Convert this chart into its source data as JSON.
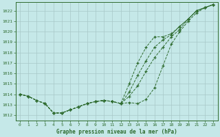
{
  "title": "Graphe pression niveau de la mer (hPa)",
  "xlabel_values": [
    0,
    1,
    2,
    3,
    4,
    5,
    6,
    7,
    8,
    9,
    10,
    11,
    12,
    13,
    14,
    15,
    16,
    17,
    18,
    19,
    20,
    21,
    22,
    23
  ],
  "ylim": [
    1011.5,
    1022.8
  ],
  "xlim": [
    -0.5,
    23.5
  ],
  "yticks": [
    1012,
    1013,
    1014,
    1015,
    1016,
    1017,
    1018,
    1019,
    1020,
    1021,
    1022
  ],
  "background_color": "#c5e8e8",
  "grid_color": "#a8c8c8",
  "line_color": "#2d6a2d",
  "line1": [
    1014.0,
    1013.8,
    1013.4,
    1013.1,
    1012.2,
    1012.2,
    1012.5,
    1012.8,
    1013.1,
    1013.3,
    1013.4,
    1013.3,
    1013.1,
    1013.2,
    1013.1,
    1013.5,
    1014.6,
    1016.7,
    1018.8,
    1020.0,
    1021.0,
    1021.8,
    1022.3,
    1022.6
  ],
  "line2": [
    1014.0,
    1013.8,
    1013.4,
    1013.1,
    1012.2,
    1012.2,
    1012.5,
    1012.8,
    1013.1,
    1013.3,
    1013.4,
    1013.3,
    1013.1,
    1013.8,
    1014.8,
    1016.2,
    1017.5,
    1018.5,
    1019.5,
    1020.2,
    1021.2,
    1022.0,
    1022.3,
    1022.6
  ],
  "line3": [
    1014.0,
    1013.8,
    1013.4,
    1013.1,
    1012.2,
    1012.2,
    1012.5,
    1012.8,
    1013.1,
    1013.3,
    1013.4,
    1013.3,
    1013.1,
    1014.2,
    1015.8,
    1017.2,
    1018.5,
    1019.2,
    1019.7,
    1020.5,
    1021.2,
    1022.0,
    1022.3,
    1022.6
  ],
  "line4": [
    1014.0,
    1013.8,
    1013.4,
    1013.1,
    1012.2,
    1012.2,
    1012.5,
    1012.8,
    1013.1,
    1013.3,
    1013.4,
    1013.3,
    1013.1,
    1015.0,
    1017.0,
    1018.5,
    1019.5,
    1019.5,
    1019.8,
    1020.5,
    1021.2,
    1022.0,
    1022.3,
    1022.6
  ]
}
